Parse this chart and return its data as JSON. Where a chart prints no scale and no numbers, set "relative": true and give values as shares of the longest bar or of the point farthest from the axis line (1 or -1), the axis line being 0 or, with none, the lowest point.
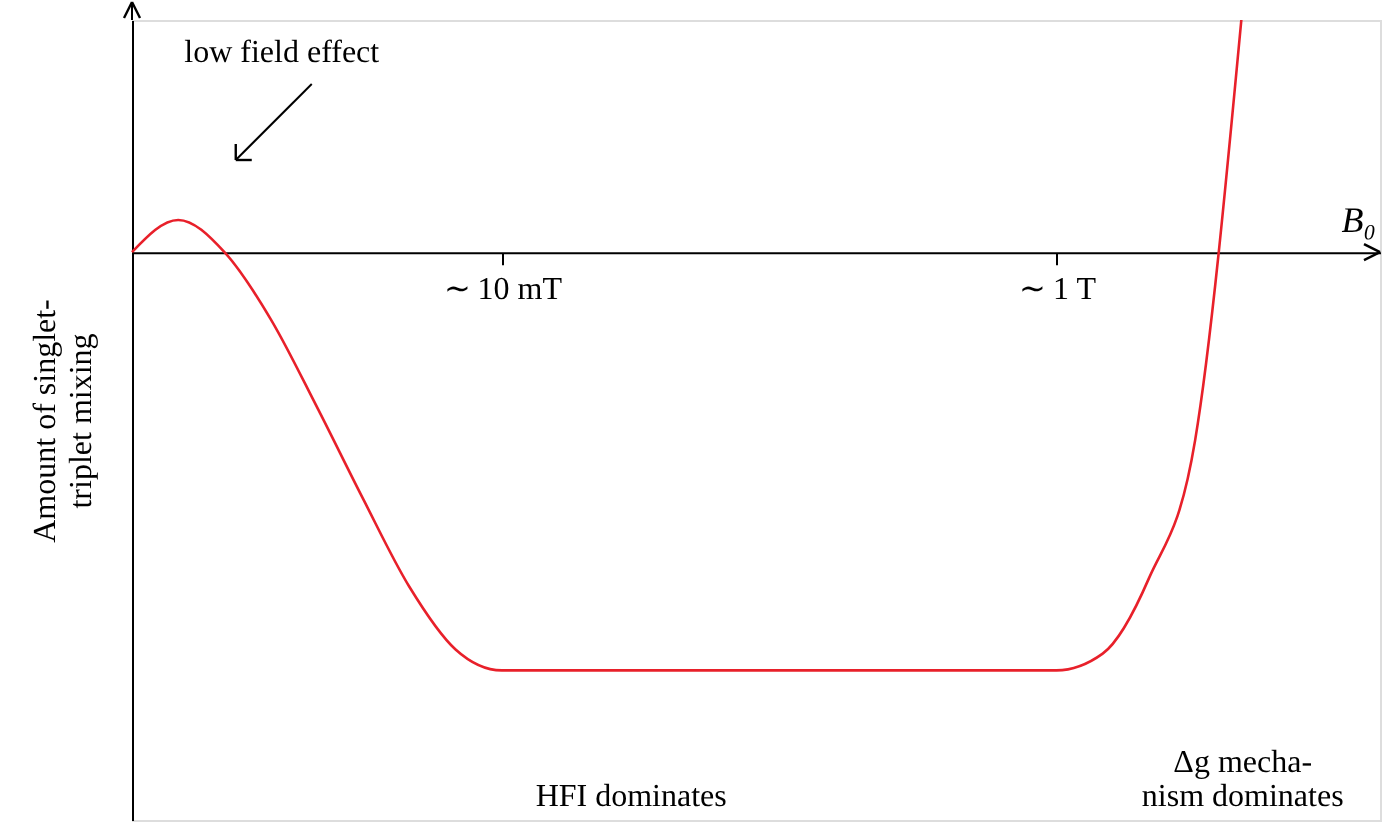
{
  "chart_data": {
    "type": "line",
    "relative": true,
    "xlabel": "B₀",
    "ylabel": "Amount of singlet-\ntriplet mixing",
    "categories": [
      null,
      null,
      null,
      null,
      null,
      null,
      null,
      null,
      "∼ 10 mT",
      null,
      null,
      null,
      null,
      null,
      null,
      null,
      null,
      null,
      null,
      null,
      "∼ 1 T",
      null,
      null,
      null,
      null,
      null,
      null,
      null
    ],
    "series": [
      {
        "color": "#e8202a",
        "values": [
          0,
          0.077,
          0,
          -0.16,
          -0.37,
          -0.59,
          -0.8,
          -0.95,
          -1,
          -1,
          -1,
          -1,
          -1,
          -1,
          -1,
          -1,
          -1,
          -1,
          -1,
          -1,
          -1,
          -0.96,
          -0.78,
          -0.45,
          0.555,
          null,
          null,
          null
        ]
      }
    ],
    "annotations": [
      "low field effect",
      "HFI dominates",
      "Δg mecha-\nnism dominates"
    ],
    "grid": false,
    "marker": "none",
    "line_style": "solid"
  }
}
